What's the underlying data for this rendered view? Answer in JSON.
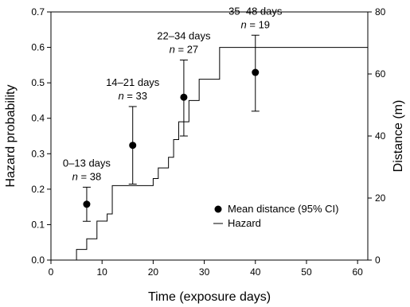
{
  "chart_data": {
    "type": "line",
    "xlabel": "Time (exposure days)",
    "ylabel_left": "Hazard probability",
    "ylabel_right": "Distance (m)",
    "xlim": [
      0,
      62
    ],
    "ylim_left": [
      0,
      0.7
    ],
    "ylim_right": [
      0,
      80
    ],
    "x_ticks": [
      0,
      10,
      20,
      30,
      40,
      50,
      60
    ],
    "y_left_ticks": [
      0.0,
      0.1,
      0.2,
      0.3,
      0.4,
      0.5,
      0.6,
      0.7
    ],
    "y_right_ticks": [
      0,
      20,
      40,
      60,
      80
    ],
    "x_tick_labels": [
      "0",
      "10",
      "20",
      "30",
      "40",
      "50",
      "60"
    ],
    "y_left_tick_labels": [
      "0.0",
      "0.1",
      "0.2",
      "0.3",
      "0.4",
      "0.5",
      "0.6",
      "0.7"
    ],
    "y_right_tick_labels": [
      "0",
      "20",
      "40",
      "60",
      "80"
    ],
    "series": [
      {
        "name": "Hazard",
        "axis": "left",
        "style": "step",
        "x": [
          5,
          7,
          9,
          11,
          12,
          20,
          21,
          23,
          24,
          25,
          27,
          29,
          33,
          62
        ],
        "y": [
          0.03,
          0.06,
          0.11,
          0.13,
          0.21,
          0.23,
          0.26,
          0.29,
          0.34,
          0.39,
          0.45,
          0.51,
          0.6,
          0.6
        ]
      },
      {
        "name": "Mean distance (95% CI)",
        "axis": "right",
        "style": "points",
        "points": [
          {
            "x": 7,
            "y": 18.0,
            "low": 12.5,
            "high": 23.5,
            "label1": "0–13 days",
            "label2_var": "n",
            "label2_val": " = 38"
          },
          {
            "x": 16,
            "y": 37.0,
            "low": 24.5,
            "high": 49.5,
            "label1": "14–21 days",
            "label2_var": "n",
            "label2_val": " = 33"
          },
          {
            "x": 26,
            "y": 52.5,
            "low": 40.0,
            "high": 64.5,
            "label1": "22–34 days",
            "label2_var": "n",
            "label2_val": " = 27"
          },
          {
            "x": 40,
            "y": 60.5,
            "low": 48.0,
            "high": 72.5,
            "label1": "35–48 days",
            "label2_var": "n",
            "label2_val": " = 19"
          }
        ]
      }
    ],
    "legend": {
      "placement": "lower-right",
      "entries": [
        {
          "label": "Mean distance (95% CI)",
          "marker": "dot"
        },
        {
          "label": "Hazard",
          "marker": "line"
        }
      ]
    },
    "colors": {
      "ink": "#000000",
      "background": "#ffffff"
    }
  }
}
